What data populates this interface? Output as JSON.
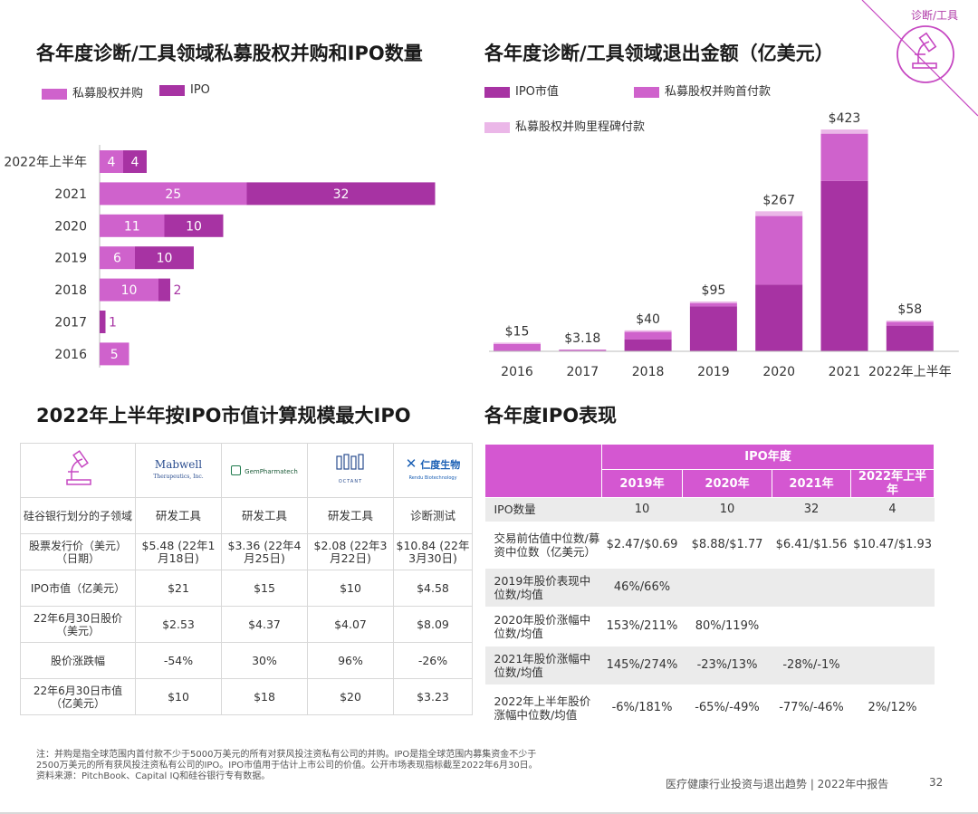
{
  "corner_tag": "诊断/工具",
  "page_number": "32",
  "footer_title": "医疗健康行业投资与退出趋势 | 2022年中报告",
  "footnote": {
    "line1": "注：并购是指全球范围内首付款不少于5000万美元的所有对获风投注资私有公司的并购。IPO是指全球范围内募集资金不少于",
    "line2": "2500万美元的所有获风投注资私有公司的IPO。IPO市值用于估计上市公司的价值。公开市场表现指标截至2022年6月30日。",
    "line3": "资料来源：PitchBook、Capital IQ和硅谷银行专有数据。"
  },
  "colors": {
    "light_purple": "#cf62cc",
    "dark_purple": "#a733a3",
    "pale_purple": "#ebb7e8",
    "header_purple": "#d457d1"
  },
  "chart_data": [
    {
      "type": "bar",
      "orientation": "horizontal",
      "stacked": true,
      "title": "各年度诊断/工具领域私募股权并购和IPO数量",
      "categories": [
        "2022年上半年",
        "2021",
        "2020",
        "2019",
        "2018",
        "2017",
        "2016"
      ],
      "series": [
        {
          "name": "私募股权并购",
          "color": "#cf62cc",
          "values": [
            4,
            25,
            11,
            6,
            10,
            0,
            5
          ]
        },
        {
          "name": "IPO",
          "color": "#a733a3",
          "values": [
            4,
            32,
            10,
            10,
            2,
            1,
            0
          ]
        }
      ],
      "legend_position": "top-left",
      "grid": false
    },
    {
      "type": "bar",
      "stacked": true,
      "title": "各年度诊断/工具领域退出金额（亿美元）",
      "categories": [
        "2016",
        "2017",
        "2018",
        "2019",
        "2020",
        "2021",
        "2022年上半年"
      ],
      "series": [
        {
          "name": "IPO市值",
          "color": "#a733a3",
          "values": [
            0,
            0,
            23,
            86,
            127,
            325,
            49
          ]
        },
        {
          "name": "私募股权并购首付款",
          "color": "#cf62cc",
          "values": [
            14,
            3.18,
            14,
            6,
            131,
            90,
            7
          ]
        },
        {
          "name": "私募股权并购里程碑付款",
          "color": "#ebb7e8",
          "values": [
            1,
            0,
            3,
            3,
            9,
            8,
            2
          ]
        }
      ],
      "totals": [
        "$15",
        "$3.18",
        "$40",
        "$95",
        "$267",
        "$423",
        "$58"
      ],
      "ylim": [
        0,
        423
      ],
      "legend_position": "top",
      "grid": false
    }
  ],
  "ipo_table": {
    "title": "2022年上半年按IPO市值计算规模最大IPO",
    "logos": [
      "Mabwell",
      "Therapeutics, Inc.",
      "GemPharmatech",
      "OCTANT",
      "仁度生物",
      "Rendu Biotechnology"
    ],
    "rows": [
      {
        "label": "硅谷银行划分的子领域",
        "cells": [
          "研发工具",
          "研发工具",
          "研发工具",
          "诊断测试"
        ]
      },
      {
        "label": "股票发行价（美元）（日期）",
        "cells": [
          "$5.48 (22年1月18日)",
          "$3.36 (22年4月25日)",
          "$2.08 (22年3月22日)",
          "$10.84 (22年3月30日)"
        ]
      },
      {
        "label": "IPO市值（亿美元）",
        "cells": [
          "$21",
          "$15",
          "$10",
          "$4.58"
        ]
      },
      {
        "label": "22年6月30日股价（美元）",
        "cells": [
          "$2.53",
          "$4.37",
          "$4.07",
          "$8.09"
        ]
      },
      {
        "label": "股价涨跌幅",
        "cells": [
          "-54%",
          "30%",
          "96%",
          "-26%"
        ]
      },
      {
        "label": "22年6月30日市值（亿美元）",
        "cells": [
          "$10",
          "$18",
          "$20",
          "$3.23"
        ]
      }
    ]
  },
  "perf_table": {
    "title": "各年度IPO表现",
    "group_header": "IPO年度",
    "years": [
      "2019年",
      "2020年",
      "2021年",
      "2022年上半年"
    ],
    "rows": [
      {
        "label": "IPO数量",
        "cells": [
          "10",
          "10",
          "32",
          "4"
        ]
      },
      {
        "label": "交易前估值中位数/募资中位数（亿美元）",
        "cells": [
          "$2.47/$0.69",
          "$8.88/$1.77",
          "$6.41/$1.56",
          "$10.47/$1.93"
        ]
      },
      {
        "label": "2019年股价表现中位数/均值",
        "cells": [
          "46%/66%",
          "",
          "",
          ""
        ]
      },
      {
        "label": "2020年股价涨幅中位数/均值",
        "cells": [
          "153%/211%",
          "80%/119%",
          "",
          ""
        ]
      },
      {
        "label": "2021年股价涨幅中位数/均值",
        "cells": [
          "145%/274%",
          "-23%/13%",
          "-28%/-1%",
          ""
        ]
      },
      {
        "label": "2022年上半年股价涨幅中位数/均值",
        "cells": [
          "-6%/181%",
          "-65%/-49%",
          "-77%/-46%",
          "2%/12%"
        ]
      }
    ]
  }
}
